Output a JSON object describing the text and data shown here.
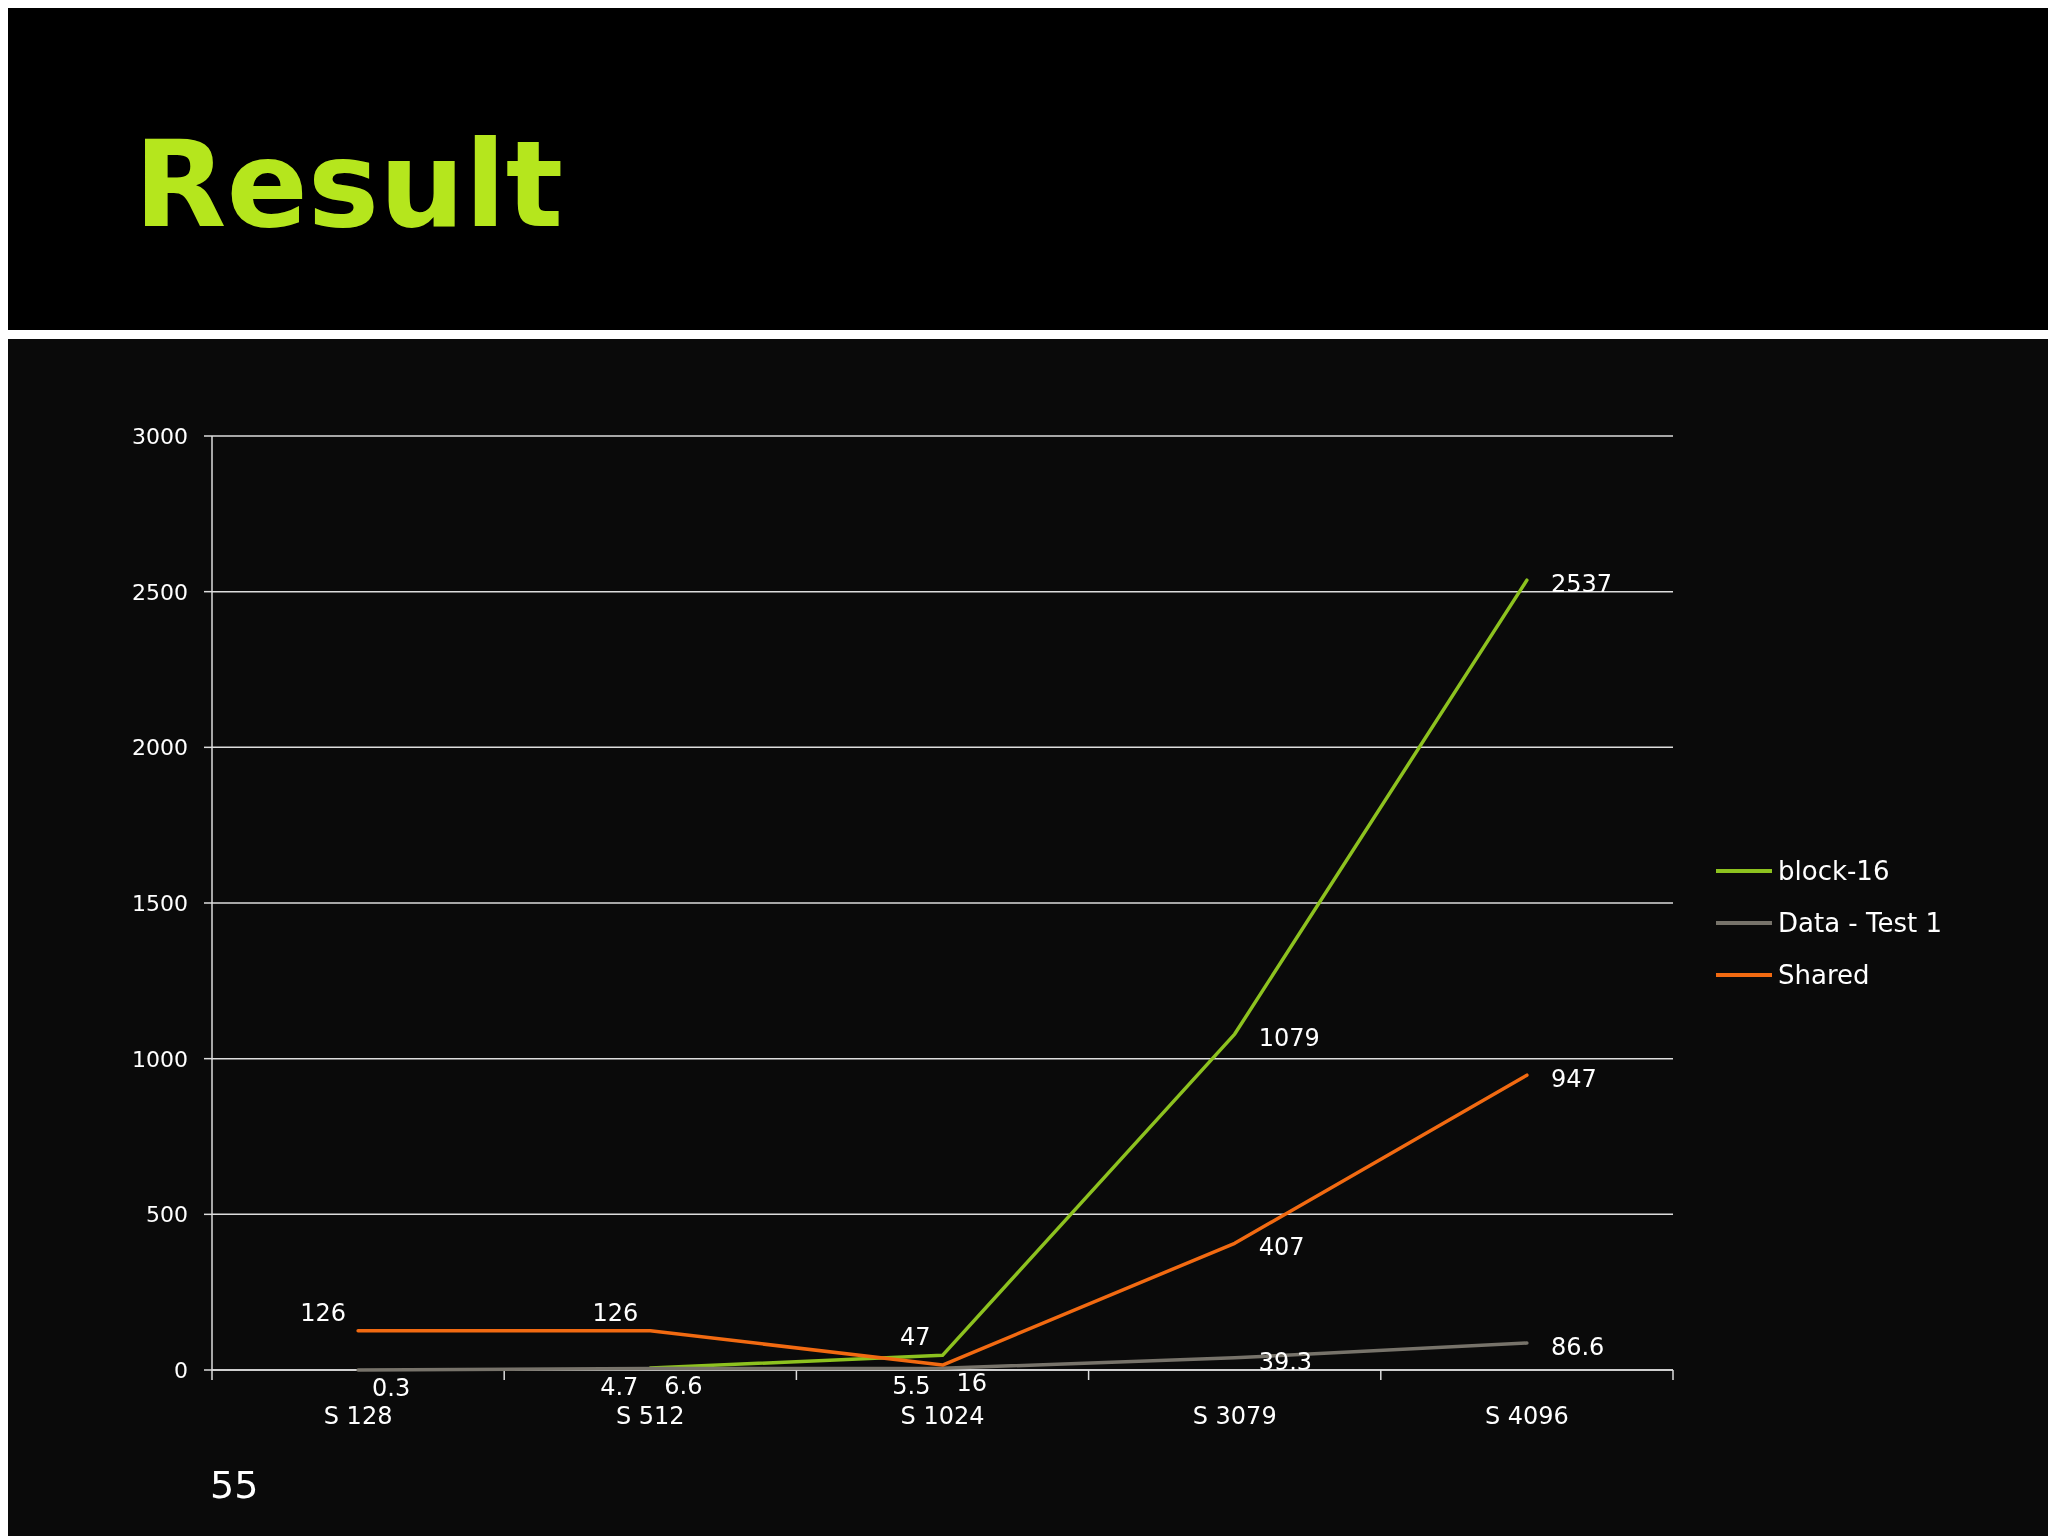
{
  "chart_data": {
    "type": "line",
    "title": "Result",
    "categories": [
      "S 128",
      "S 512",
      "S 1024",
      "S 3079",
      "S 4096"
    ],
    "series": [
      {
        "name": "block-16",
        "color": "#8dc21f",
        "values": [
          null,
          6.6,
          47,
          1079,
          2537
        ]
      },
      {
        "name": "Data - Test 1",
        "color": "#77736a",
        "values": [
          0.3,
          4.7,
          5.5,
          39.3,
          86.6
        ]
      },
      {
        "name": "Shared",
        "color": "#f26a11",
        "values": [
          126,
          126,
          16,
          407,
          947
        ]
      }
    ],
    "ylim": [
      0,
      3000
    ],
    "yticks": [
      0,
      500,
      1000,
      1500,
      2000,
      2500,
      3000
    ],
    "grid": "y",
    "legend": "right",
    "data_labels": true,
    "marker": "none",
    "line_style": "solid",
    "annotations": [
      "55"
    ]
  }
}
